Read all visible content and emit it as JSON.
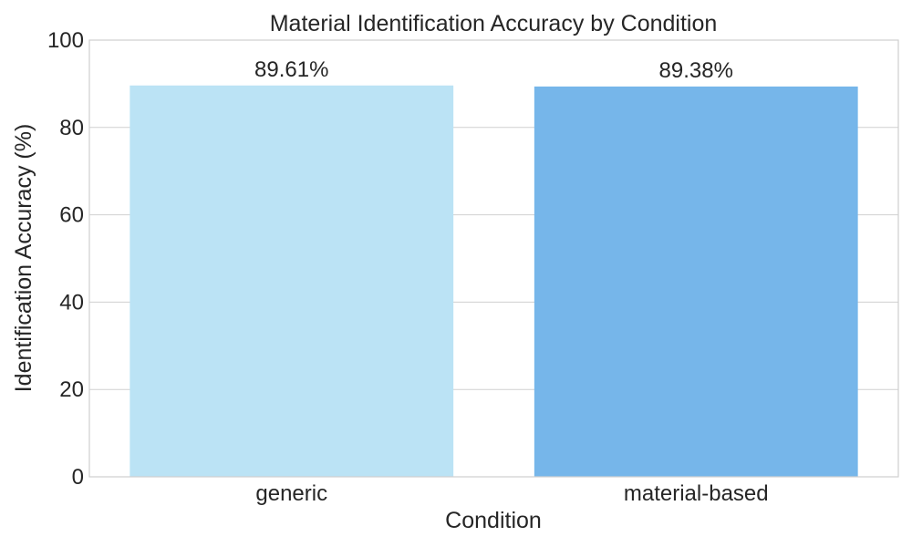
{
  "chart_data": {
    "type": "bar",
    "title": "Material Identification Accuracy by Condition",
    "xlabel": "Condition",
    "ylabel": "Identification Accuracy (%)",
    "categories": [
      "generic",
      "material-based"
    ],
    "values": [
      89.61,
      89.38
    ],
    "data_labels": [
      "89.61%",
      "89.38%"
    ],
    "colors": [
      "#bbe3f5",
      "#76b6ea"
    ],
    "ylim": [
      0,
      100
    ],
    "yticks": [
      0,
      20,
      40,
      60,
      80,
      100
    ],
    "ytick_labels": [
      "0",
      "20",
      "40",
      "60",
      "80",
      "100"
    ],
    "grid": "y",
    "legend": "none"
  }
}
